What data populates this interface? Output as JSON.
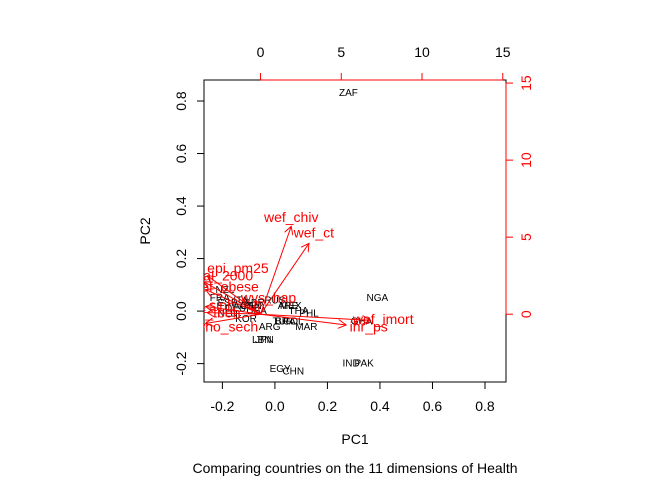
{
  "chart_data": {
    "type": "biplot",
    "xlabel": "PC1",
    "ylabel": "PC2",
    "subtitle": "Comparing countries on the 11 dimensions of Health",
    "xlim": [
      -0.27,
      0.88
    ],
    "ylim": [
      -0.27,
      0.88
    ],
    "x_ticks": [
      "-0.2",
      "0.0",
      "0.2",
      "0.4",
      "0.6",
      "0.8"
    ],
    "x_tick_values": [
      -0.2,
      0.0,
      0.2,
      0.4,
      0.6,
      0.8
    ],
    "y_ticks": [
      "-0.2",
      "0.0",
      "0.2",
      "0.4",
      "0.6",
      "0.8"
    ],
    "y_tick_values": [
      -0.2,
      0.0,
      0.2,
      0.4,
      0.6,
      0.8
    ],
    "loading_xlim": [
      -3.5,
      15.2
    ],
    "loading_ylim": [
      -4.4,
      15.2
    ],
    "top_ticks": [
      "0",
      "5",
      "10",
      "15"
    ],
    "top_tick_values": [
      0,
      5,
      10,
      15
    ],
    "right_ticks": [
      "0",
      "5",
      "10",
      "15"
    ],
    "right_tick_values": [
      0,
      5,
      10,
      15
    ],
    "grid": false,
    "colors": {
      "points": "#000000",
      "loadings": "#ff0000",
      "axes": "#000000",
      "secondary_axes": "#ff0000"
    },
    "countries": [
      {
        "label": "ZAF",
        "x": 0.28,
        "y": 0.83
      },
      {
        "label": "NGA",
        "x": 0.39,
        "y": 0.05
      },
      {
        "label": "GHA",
        "x": 0.33,
        "y": -0.04
      },
      {
        "label": "MAR",
        "x": 0.12,
        "y": -0.06
      },
      {
        "label": "IND",
        "x": 0.29,
        "y": -0.2
      },
      {
        "label": "PAK",
        "x": 0.34,
        "y": -0.2
      },
      {
        "label": "EGY",
        "x": 0.02,
        "y": -0.22
      },
      {
        "label": "CHN",
        "x": 0.07,
        "y": -0.23
      },
      {
        "label": "JPN",
        "x": -0.04,
        "y": -0.11
      },
      {
        "label": "LBN",
        "x": -0.05,
        "y": -0.11
      },
      {
        "label": "KOR",
        "x": -0.11,
        "y": -0.03
      },
      {
        "label": "ARG",
        "x": -0.02,
        "y": -0.06
      },
      {
        "label": "BRA",
        "x": 0.04,
        "y": -0.04
      },
      {
        "label": "MEX",
        "x": 0.06,
        "y": 0.02
      },
      {
        "label": "NZL",
        "x": -0.19,
        "y": 0.08
      },
      {
        "label": "FRA",
        "x": -0.21,
        "y": 0.05
      },
      {
        "label": "ESP",
        "x": -0.18,
        "y": 0.03
      },
      {
        "label": "ITA",
        "x": -0.13,
        "y": 0.04
      },
      {
        "label": "DEU",
        "x": -0.15,
        "y": 0.01
      },
      {
        "label": "NLD",
        "x": -0.18,
        "y": -0.01
      },
      {
        "label": "GBR",
        "x": -0.08,
        "y": 0.03
      },
      {
        "label": "RUS",
        "x": 0.0,
        "y": 0.04
      },
      {
        "label": "TUR",
        "x": 0.03,
        "y": -0.04
      },
      {
        "label": "THA",
        "x": 0.09,
        "y": 0.0
      },
      {
        "label": "PHL",
        "x": 0.13,
        "y": -0.01
      },
      {
        "label": "COL",
        "x": 0.07,
        "y": -0.04
      },
      {
        "label": "ARE",
        "x": 0.05,
        "y": 0.02
      },
      {
        "label": "USA",
        "x": -0.07,
        "y": 0.0
      },
      {
        "label": "CAN",
        "x": -0.09,
        "y": 0.02
      },
      {
        "label": "AUS",
        "x": -0.12,
        "y": 0.02
      }
    ],
    "loadings": [
      {
        "label": "wef_chiv",
        "x": 1.9,
        "y": 5.7,
        "lx": 1.9,
        "ly": 6.3
      },
      {
        "label": "wef_ct",
        "x": 3.0,
        "y": 4.6,
        "lx": 3.3,
        "ly": 5.3
      },
      {
        "label": "epi_pm25",
        "x": -3.3,
        "y": 2.5,
        "lx": -1.4,
        "ly": 3.0
      },
      {
        "label": "al_2000",
        "x": -3.5,
        "y": 2.1,
        "lx": -2.0,
        "ly": 2.5
      },
      {
        "label": "wef_imort",
        "x": 6.8,
        "y": -0.4,
        "lx": 7.6,
        "ly": -0.3
      },
      {
        "label": "ihr_ps",
        "x": 5.3,
        "y": -0.7,
        "lx": 6.7,
        "ly": -0.8
      },
      {
        "label": "wvs_hap",
        "x": -0.3,
        "y": 0.9,
        "lx": 0.5,
        "ly": 1.1
      },
      {
        "label": "wef_obese",
        "x": -3.4,
        "y": 1.6,
        "lx": -2.2,
        "ly": 1.8
      },
      {
        "label": "wef_sinh",
        "x": -3.4,
        "y": 0.5,
        "lx": -3.3,
        "ly": 0.6
      },
      {
        "label": "wef_tbeh",
        "x": -3.3,
        "y": 0.1,
        "lx": -3.0,
        "ly": 0.1
      },
      {
        "label": "who_sech",
        "x": -3.4,
        "y": -0.6,
        "lx": -2.1,
        "ly": -0.8
      }
    ]
  }
}
